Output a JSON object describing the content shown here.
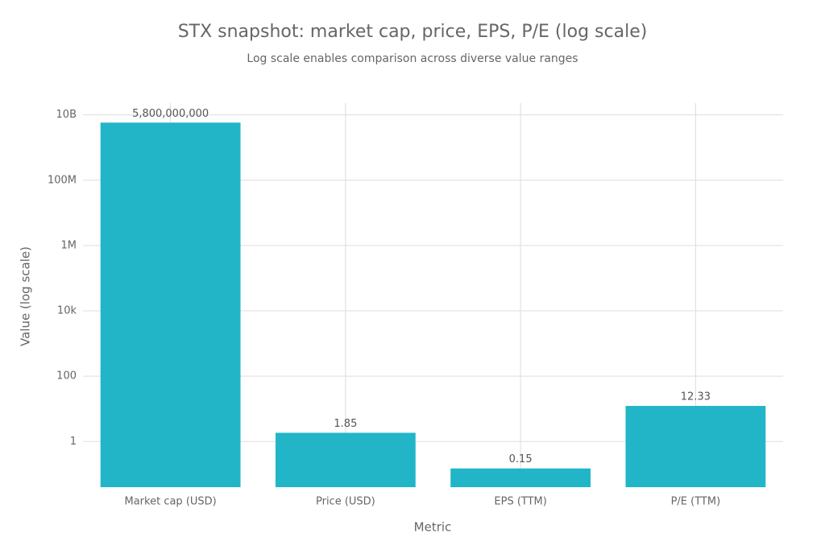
{
  "chart_data": {
    "type": "bar",
    "title": "STX snapshot: market cap, price, EPS, P/E (log scale)",
    "subtitle": "Log scale enables comparison across diverse value ranges",
    "x_label": "Metric",
    "y_label": "Value (log scale)",
    "categories": [
      "Market cap (USD)",
      "Price (USD)",
      "EPS (TTM)",
      "P/E (TTM)"
    ],
    "values": [
      5800000000,
      1.85,
      0.15,
      12.33
    ],
    "value_labels": [
      "5,800,000,000",
      "1.85",
      "0.15",
      "12.33"
    ],
    "color": "#22b5c8",
    "log_scale": true,
    "grid": true,
    "ylim": [
      0.04,
      23000000000
    ],
    "yticks": [
      1,
      100,
      {
        "value": 10000,
        "label": "10k"
      },
      {
        "value": 1000000,
        "label": "1M"
      },
      {
        "value": 100000000,
        "label": "100M"
      },
      {
        "value": 10000000000,
        "label": "10B"
      }
    ]
  }
}
